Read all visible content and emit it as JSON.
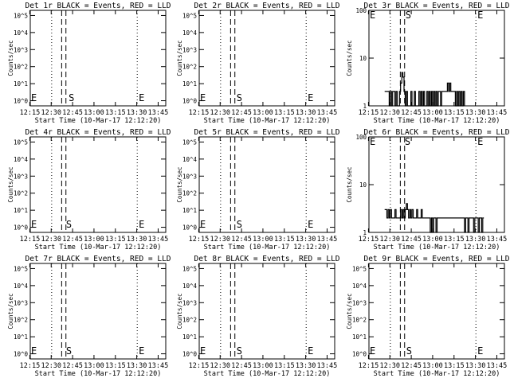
{
  "chart_data": [
    {
      "type": "line",
      "title": "Det 1r BLACK = Events, RED = LLD",
      "xlabel": "Start Time (10-Mar-17 12:12:20)",
      "ylabel": "Counts/sec",
      "x_ticks": [
        "12:15",
        "12:30",
        "12:45",
        "13:00",
        "13:15",
        "13:30",
        "13:45"
      ],
      "x_range_min": [
        3.0,
        98.0
      ],
      "y_scale": "log",
      "y_range": [
        0.5,
        200000
      ],
      "y_ticks": [
        {
          "v": 1,
          "label": "10^0"
        },
        {
          "v": 10,
          "label": "10^1"
        },
        {
          "v": 100,
          "label": "10^2"
        },
        {
          "v": 1000,
          "label": "10^3"
        },
        {
          "v": 10000,
          "label": "10^4"
        },
        {
          "v": 100000,
          "label": "10^5"
        }
      ],
      "dotted_lines_min": [
        3.0,
        18.0,
        78.0,
        98.0
      ],
      "dashed_lines_min": [
        25.0,
        28.0
      ],
      "markers": [
        {
          "label": "E",
          "x": 3.0,
          "y": 1.2
        },
        {
          "label": "S",
          "x": 29.3,
          "y": 1.2
        },
        {
          "label": "E",
          "x": 78.5,
          "y": 1.2
        }
      ],
      "series": []
    },
    {
      "type": "line",
      "title": "Det 2r BLACK = Events, RED = LLD",
      "xlabel": "Start Time (10-Mar-17 12:12:20)",
      "ylabel": "Counts/sec",
      "x_ticks": [
        "12:15",
        "12:30",
        "12:45",
        "13:00",
        "13:15",
        "13:30",
        "13:45"
      ],
      "x_range_min": [
        3.0,
        98.0
      ],
      "y_scale": "log",
      "y_range": [
        0.5,
        200000
      ],
      "y_ticks": [
        {
          "v": 1,
          "label": "10^0"
        },
        {
          "v": 10,
          "label": "10^1"
        },
        {
          "v": 100,
          "label": "10^2"
        },
        {
          "v": 1000,
          "label": "10^3"
        },
        {
          "v": 10000,
          "label": "10^4"
        },
        {
          "v": 100000,
          "label": "10^5"
        }
      ],
      "dotted_lines_min": [
        3.0,
        18.0,
        78.0,
        98.0
      ],
      "dashed_lines_min": [
        25.0,
        28.0
      ],
      "markers": [
        {
          "label": "E",
          "x": 3.0,
          "y": 1.2
        },
        {
          "label": "S",
          "x": 28.6,
          "y": 1.2
        },
        {
          "label": "E",
          "x": 78.5,
          "y": 1.2
        }
      ],
      "series": []
    },
    {
      "type": "line",
      "title": "Det 3r BLACK = Events, RED = LLD",
      "xlabel": "Start Time (10-Mar-17 12:12:20)",
      "ylabel": "Counts/sec",
      "x_ticks": [
        "12:15",
        "12:30",
        "12:45",
        "13:00",
        "13:15",
        "13:30",
        "13:45"
      ],
      "x_range_min": [
        3.0,
        98.0
      ],
      "y_scale": "log",
      "y_range": [
        1,
        100
      ],
      "y_ticks": [
        {
          "v": 1,
          "label": "1"
        },
        {
          "v": 10,
          "label": "10"
        },
        {
          "v": 100,
          "label": "100"
        }
      ],
      "dotted_lines_min": [
        3.0,
        18.0,
        78.0,
        98.0
      ],
      "dashed_lines_min": [
        25.0,
        28.0
      ],
      "markers": [
        {
          "label": "E",
          "x": 3.0,
          "y": 100
        },
        {
          "label": "S",
          "x": 28.0,
          "y": 100
        },
        {
          "label": "E",
          "x": 78.5,
          "y": 100
        }
      ],
      "series": [
        {
          "color": "#000000",
          "x": [
            14.0,
            14.8,
            15.6,
            16.4,
            17.2,
            18.0,
            18.8,
            19.6,
            20.4,
            21.2,
            22.0,
            22.8,
            23.6,
            24.4,
            25.2,
            26.0,
            26.8,
            27.6,
            28.4,
            29.2,
            30.0,
            30.8,
            31.6,
            32.4,
            33.2,
            34.0,
            34.8,
            35.6,
            36.4,
            37.2,
            38.0,
            38.8,
            39.6,
            40.4,
            41.2,
            42.0,
            42.8,
            43.6,
            44.4,
            45.2,
            46.0,
            46.8,
            47.6,
            48.4,
            49.2,
            50.0,
            50.8,
            51.6,
            52.4,
            53.2,
            54.0,
            54.8,
            55.6,
            56.4,
            57.2,
            58.0,
            58.8,
            59.6,
            60.4,
            61.2,
            62.0,
            62.8,
            63.6,
            64.4,
            65.2,
            66.0,
            66.8,
            67.6,
            68.4,
            69.2,
            70.0
          ],
          "y": [
            2,
            2,
            2,
            2,
            1,
            2,
            1,
            2,
            2,
            1,
            2,
            1,
            1,
            2,
            3,
            5,
            4,
            2,
            1,
            2,
            1,
            1,
            1,
            2,
            1,
            1,
            2,
            1,
            1,
            1,
            2,
            1,
            2,
            1,
            2,
            1,
            1,
            2,
            1,
            2,
            1,
            2,
            1,
            2,
            1,
            2,
            1,
            2,
            2,
            1,
            2,
            2,
            2,
            2,
            2,
            3,
            2,
            3,
            2,
            2,
            2,
            2,
            1,
            2,
            1,
            2,
            1,
            2,
            1,
            2,
            1
          ]
        }
      ]
    },
    {
      "type": "line",
      "title": "Det 4r BLACK = Events, RED = LLD",
      "xlabel": "Start Time (10-Mar-17 12:12:20)",
      "ylabel": "Counts/sec",
      "x_ticks": [
        "12:15",
        "12:30",
        "12:45",
        "13:00",
        "13:15",
        "13:30",
        "13:45"
      ],
      "x_range_min": [
        3.0,
        98.0
      ],
      "y_scale": "log",
      "y_range": [
        0.5,
        200000
      ],
      "y_ticks": [
        {
          "v": 1,
          "label": "10^0"
        },
        {
          "v": 10,
          "label": "10^1"
        },
        {
          "v": 100,
          "label": "10^2"
        },
        {
          "v": 1000,
          "label": "10^3"
        },
        {
          "v": 10000,
          "label": "10^4"
        },
        {
          "v": 100000,
          "label": "10^5"
        }
      ],
      "dotted_lines_min": [
        3.0,
        18.0,
        78.0,
        98.0
      ],
      "dashed_lines_min": [
        25.0,
        28.0
      ],
      "markers": [
        {
          "label": "E",
          "x": 3.0,
          "y": 1.2
        },
        {
          "label": "S",
          "x": 27.5,
          "y": 1.2
        },
        {
          "label": "E",
          "x": 78.5,
          "y": 1.2
        }
      ],
      "series": []
    },
    {
      "type": "line",
      "title": "Det 5r BLACK = Events, RED = LLD",
      "xlabel": "Start Time (10-Mar-17 12:12:20)",
      "ylabel": "Counts/sec",
      "x_ticks": [
        "12:15",
        "12:30",
        "12:45",
        "13:00",
        "13:15",
        "13:30",
        "13:45"
      ],
      "x_range_min": [
        3.0,
        98.0
      ],
      "y_scale": "log",
      "y_range": [
        0.5,
        200000
      ],
      "y_ticks": [
        {
          "v": 1,
          "label": "10^0"
        },
        {
          "v": 10,
          "label": "10^1"
        },
        {
          "v": 100,
          "label": "10^2"
        },
        {
          "v": 1000,
          "label": "10^3"
        },
        {
          "v": 10000,
          "label": "10^4"
        },
        {
          "v": 100000,
          "label": "10^5"
        }
      ],
      "dotted_lines_min": [
        3.0,
        18.0,
        78.0,
        98.0
      ],
      "dashed_lines_min": [
        25.0,
        28.0
      ],
      "markers": [
        {
          "label": "E",
          "x": 3.0,
          "y": 1.2
        },
        {
          "label": "S",
          "x": 28.6,
          "y": 1.2
        },
        {
          "label": "E",
          "x": 78.5,
          "y": 1.2
        }
      ],
      "series": []
    },
    {
      "type": "line",
      "title": "Det 6r BLACK = Events, RED = LLD",
      "xlabel": "Start Time (10-Mar-17 12:12:20)",
      "ylabel": "Counts/sec",
      "x_ticks": [
        "12:15",
        "12:30",
        "12:45",
        "13:00",
        "13:15",
        "13:30",
        "13:45"
      ],
      "x_range_min": [
        3.0,
        98.0
      ],
      "y_scale": "log",
      "y_range": [
        1,
        100
      ],
      "y_ticks": [
        {
          "v": 1,
          "label": "1"
        },
        {
          "v": 10,
          "label": "10"
        },
        {
          "v": 100,
          "label": "100"
        }
      ],
      "dotted_lines_min": [
        3.0,
        18.0,
        78.0,
        98.0
      ],
      "dashed_lines_min": [
        25.0,
        28.0
      ],
      "markers": [
        {
          "label": "E",
          "x": 3.0,
          "y": 100
        },
        {
          "label": "S",
          "x": 27.5,
          "y": 100
        },
        {
          "label": "E",
          "x": 78.5,
          "y": 100
        }
      ],
      "series": [
        {
          "color": "#000000",
          "x": [
            14.0,
            14.8,
            15.6,
            16.4,
            17.2,
            18.0,
            18.8,
            19.6,
            20.4,
            21.2,
            22.0,
            22.8,
            23.6,
            24.4,
            25.2,
            26.0,
            26.8,
            27.6,
            28.4,
            29.2,
            30.0,
            30.8,
            31.6,
            32.4,
            33.2,
            34.0,
            34.8,
            35.6,
            36.4,
            37.2,
            38.0,
            38.8,
            39.6,
            40.4,
            41.2,
            42.0,
            42.8,
            43.6,
            44.4,
            45.2,
            46.0,
            46.8,
            47.6,
            48.4,
            49.2,
            50.0,
            50.8,
            51.6,
            52.4,
            53.2,
            54.0,
            54.8,
            55.6,
            56.4,
            57.2,
            58.0,
            58.8,
            59.6,
            60.4,
            61.2,
            62.0,
            62.8,
            63.6,
            64.4,
            65.2,
            66.0,
            66.8,
            67.6,
            68.4,
            69.2,
            70.0,
            70.8,
            71.6,
            72.4,
            73.2,
            74.0,
            74.8,
            75.6,
            76.4,
            77.2,
            78.0,
            78.8,
            79.6,
            80.4,
            81.2,
            82.0,
            82.8,
            83.6
          ],
          "y": [
            3,
            3,
            2,
            3,
            2,
            3,
            2,
            2,
            2,
            3,
            2,
            2,
            2,
            2,
            3,
            2,
            3,
            2,
            3,
            4,
            3,
            2,
            3,
            2,
            3,
            2,
            2,
            2,
            3,
            2,
            2,
            2,
            3,
            2,
            2,
            2,
            2,
            2,
            2,
            2,
            1,
            2,
            1,
            2,
            2,
            1,
            2,
            2,
            2,
            2,
            2,
            2,
            2,
            2,
            2,
            2,
            2,
            2,
            2,
            2,
            2,
            2,
            2,
            2,
            2,
            2,
            2,
            2,
            2,
            2,
            1,
            2,
            2,
            1,
            2,
            2,
            2,
            2,
            1,
            2,
            2,
            2,
            1,
            2,
            2,
            1,
            2,
            2
          ]
        }
      ]
    },
    {
      "type": "line",
      "title": "Det 7r BLACK = Events, RED = LLD",
      "xlabel": "Start Time (10-Mar-17 12:12:20)",
      "ylabel": "Counts/sec",
      "x_ticks": [
        "12:15",
        "12:30",
        "12:45",
        "13:00",
        "13:15",
        "13:30",
        "13:45"
      ],
      "x_range_min": [
        3.0,
        98.0
      ],
      "y_scale": "log",
      "y_range": [
        0.5,
        200000
      ],
      "y_ticks": [
        {
          "v": 1,
          "label": "10^0"
        },
        {
          "v": 10,
          "label": "10^1"
        },
        {
          "v": 100,
          "label": "10^2"
        },
        {
          "v": 1000,
          "label": "10^3"
        },
        {
          "v": 10000,
          "label": "10^4"
        },
        {
          "v": 100000,
          "label": "10^5"
        }
      ],
      "dotted_lines_min": [
        3.0,
        18.0,
        78.0,
        98.0
      ],
      "dashed_lines_min": [
        25.0,
        28.0
      ],
      "markers": [
        {
          "label": "E",
          "x": 3.0,
          "y": 1.2
        },
        {
          "label": "S",
          "x": 27.5,
          "y": 1.2
        },
        {
          "label": "E",
          "x": 78.5,
          "y": 1.2
        }
      ],
      "series": []
    },
    {
      "type": "line",
      "title": "Det 8r BLACK = Events, RED = LLD",
      "xlabel": "Start Time (10-Mar-17 12:12:20)",
      "ylabel": "Counts/sec",
      "x_ticks": [
        "12:15",
        "12:30",
        "12:45",
        "13:00",
        "13:15",
        "13:30",
        "13:45"
      ],
      "x_range_min": [
        3.0,
        98.0
      ],
      "y_scale": "log",
      "y_range": [
        0.5,
        200000
      ],
      "y_ticks": [
        {
          "v": 1,
          "label": "10^0"
        },
        {
          "v": 10,
          "label": "10^1"
        },
        {
          "v": 100,
          "label": "10^2"
        },
        {
          "v": 1000,
          "label": "10^3"
        },
        {
          "v": 10000,
          "label": "10^4"
        },
        {
          "v": 100000,
          "label": "10^5"
        }
      ],
      "dotted_lines_min": [
        3.0,
        18.0,
        78.0,
        98.0
      ],
      "dashed_lines_min": [
        25.0,
        28.0
      ],
      "markers": [
        {
          "label": "E",
          "x": 3.0,
          "y": 1.2
        },
        {
          "label": "S",
          "x": 28.6,
          "y": 1.2
        },
        {
          "label": "E",
          "x": 78.5,
          "y": 1.2
        }
      ],
      "series": []
    },
    {
      "type": "line",
      "title": "Det 9r BLACK = Events, RED = LLD",
      "xlabel": "Start Time (10-Mar-17 12:12:20)",
      "ylabel": "Counts/sec",
      "x_ticks": [
        "12:15",
        "12:30",
        "12:45",
        "13:00",
        "13:15",
        "13:30",
        "13:45"
      ],
      "x_range_min": [
        3.0,
        98.0
      ],
      "y_scale": "log",
      "y_range": [
        0.5,
        200000
      ],
      "y_ticks": [
        {
          "v": 1,
          "label": "10^0"
        },
        {
          "v": 10,
          "label": "10^1"
        },
        {
          "v": 100,
          "label": "10^2"
        },
        {
          "v": 1000,
          "label": "10^3"
        },
        {
          "v": 10000,
          "label": "10^4"
        },
        {
          "v": 100000,
          "label": "10^5"
        }
      ],
      "dotted_lines_min": [
        3.0,
        18.0,
        78.0,
        98.0
      ],
      "dashed_lines_min": [
        25.0,
        28.0
      ],
      "markers": [
        {
          "label": "E",
          "x": 3.0,
          "y": 1.2
        },
        {
          "label": "S",
          "x": 28.6,
          "y": 1.2
        },
        {
          "label": "E",
          "x": 78.5,
          "y": 1.2
        }
      ],
      "series": []
    }
  ]
}
